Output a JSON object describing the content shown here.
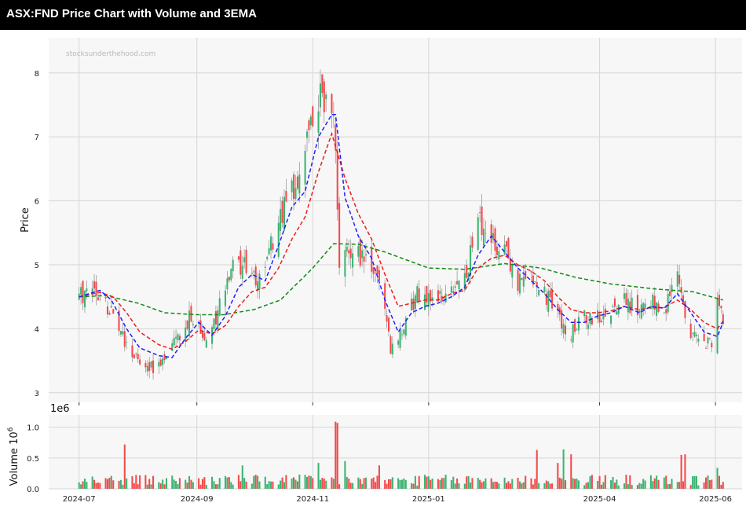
{
  "title": "ASX:FND Price Chart with Volume and 3EMA",
  "watermark": "stocksunderthehood.com",
  "colors": {
    "up": "#3cb371",
    "down": "#f24a4a",
    "ema_fast": "#1f1fff",
    "ema_mid": "#ee1c1c",
    "ema_slow": "#138a13",
    "panel_bg": "#f7f7f7",
    "grid": "#d6d6d6"
  },
  "chart_data": [
    {
      "type": "candlestick",
      "ylabel": "Price",
      "ylim": [
        2.85,
        8.55
      ],
      "yticks": [
        3,
        4,
        5,
        6,
        7,
        8
      ],
      "xlim": [
        "2024-06-15",
        "2025-06-15"
      ],
      "grid": true,
      "anchors": [
        [
          "2024-07-01",
          4.52
        ],
        [
          "2024-07-10",
          4.62
        ],
        [
          "2024-07-18",
          4.25
        ],
        [
          "2024-07-25",
          3.85
        ],
        [
          "2024-08-01",
          3.45
        ],
        [
          "2024-08-08",
          3.4
        ],
        [
          "2024-08-15",
          3.45
        ],
        [
          "2024-08-22",
          3.85
        ],
        [
          "2024-08-29",
          4.25
        ],
        [
          "2024-09-05",
          3.85
        ],
        [
          "2024-09-12",
          4.25
        ],
        [
          "2024-09-20",
          4.95
        ],
        [
          "2024-09-27",
          5.0
        ],
        [
          "2024-10-04",
          4.75
        ],
        [
          "2024-10-11",
          5.35
        ],
        [
          "2024-10-18",
          6.05
        ],
        [
          "2024-10-25",
          6.35
        ],
        [
          "2024-10-31",
          7.1
        ],
        [
          "2024-11-05",
          7.75
        ],
        [
          "2024-11-12",
          7.35
        ],
        [
          "2024-11-15",
          5.1
        ],
        [
          "2024-11-22",
          5.2
        ],
        [
          "2024-11-29",
          5.05
        ],
        [
          "2024-12-06",
          4.85
        ],
        [
          "2024-12-12",
          3.65
        ],
        [
          "2024-12-18",
          4.05
        ],
        [
          "2024-12-26",
          4.55
        ],
        [
          "2025-01-06",
          4.45
        ],
        [
          "2025-01-13",
          4.55
        ],
        [
          "2025-01-20",
          4.75
        ],
        [
          "2025-01-27",
          5.75
        ],
        [
          "2025-02-03",
          5.4
        ],
        [
          "2025-02-10",
          5.2
        ],
        [
          "2025-02-17",
          4.75
        ],
        [
          "2025-02-24",
          4.85
        ],
        [
          "2025-03-03",
          4.55
        ],
        [
          "2025-03-10",
          4.15
        ],
        [
          "2025-03-17",
          3.95
        ],
        [
          "2025-03-24",
          4.15
        ],
        [
          "2025-03-31",
          4.2
        ],
        [
          "2025-04-07",
          4.3
        ],
        [
          "2025-04-14",
          4.45
        ],
        [
          "2025-04-22",
          4.25
        ],
        [
          "2025-04-30",
          4.4
        ],
        [
          "2025-05-06",
          4.35
        ],
        [
          "2025-05-12",
          4.9
        ],
        [
          "2025-05-16",
          4.05
        ],
        [
          "2025-05-23",
          3.85
        ],
        [
          "2025-05-30",
          3.72
        ],
        [
          "2025-06-02",
          4.35
        ],
        [
          "2025-06-05",
          4.22
        ]
      ],
      "ema_fast": [
        [
          "2024-07-01",
          4.5
        ],
        [
          "2024-07-12",
          4.6
        ],
        [
          "2024-07-18",
          4.45
        ],
        [
          "2024-07-26",
          4.0
        ],
        [
          "2024-08-02",
          3.7
        ],
        [
          "2024-08-12",
          3.58
        ],
        [
          "2024-08-19",
          3.55
        ],
        [
          "2024-08-26",
          3.85
        ],
        [
          "2024-09-02",
          4.1
        ],
        [
          "2024-09-09",
          3.9
        ],
        [
          "2024-09-16",
          4.2
        ],
        [
          "2024-09-23",
          4.65
        ],
        [
          "2024-09-30",
          4.85
        ],
        [
          "2024-10-07",
          4.75
        ],
        [
          "2024-10-14",
          5.3
        ],
        [
          "2024-10-21",
          5.9
        ],
        [
          "2024-10-28",
          6.15
        ],
        [
          "2024-11-04",
          7.0
        ],
        [
          "2024-11-11",
          7.35
        ],
        [
          "2024-11-13",
          7.35
        ],
        [
          "2024-11-18",
          6.05
        ],
        [
          "2024-11-25",
          5.45
        ],
        [
          "2024-12-02",
          5.1
        ],
        [
          "2024-12-09",
          4.45
        ],
        [
          "2024-12-16",
          3.95
        ],
        [
          "2024-12-23",
          4.25
        ],
        [
          "2024-12-30",
          4.35
        ],
        [
          "2025-01-06",
          4.4
        ],
        [
          "2025-01-13",
          4.5
        ],
        [
          "2025-01-20",
          4.65
        ],
        [
          "2025-01-27",
          5.15
        ],
        [
          "2025-02-03",
          5.45
        ],
        [
          "2025-02-10",
          5.2
        ],
        [
          "2025-02-17",
          4.95
        ],
        [
          "2025-02-24",
          4.75
        ],
        [
          "2025-03-03",
          4.55
        ],
        [
          "2025-03-10",
          4.3
        ],
        [
          "2025-03-17",
          4.1
        ],
        [
          "2025-03-24",
          4.1
        ],
        [
          "2025-03-31",
          4.2
        ],
        [
          "2025-04-07",
          4.25
        ],
        [
          "2025-04-14",
          4.35
        ],
        [
          "2025-04-22",
          4.25
        ],
        [
          "2025-04-28",
          4.35
        ],
        [
          "2025-05-05",
          4.32
        ],
        [
          "2025-05-12",
          4.55
        ],
        [
          "2025-05-19",
          4.25
        ],
        [
          "2025-05-26",
          3.95
        ],
        [
          "2025-06-02",
          3.88
        ],
        [
          "2025-06-05",
          4.1
        ]
      ],
      "ema_mid": [
        [
          "2024-07-01",
          4.5
        ],
        [
          "2024-07-12",
          4.57
        ],
        [
          "2024-07-19",
          4.5
        ],
        [
          "2024-07-26",
          4.25
        ],
        [
          "2024-08-02",
          3.95
        ],
        [
          "2024-08-12",
          3.75
        ],
        [
          "2024-08-19",
          3.68
        ],
        [
          "2024-08-26",
          3.8
        ],
        [
          "2024-09-02",
          3.98
        ],
        [
          "2024-09-09",
          3.92
        ],
        [
          "2024-09-16",
          4.05
        ],
        [
          "2024-09-23",
          4.35
        ],
        [
          "2024-09-30",
          4.58
        ],
        [
          "2024-10-07",
          4.65
        ],
        [
          "2024-10-14",
          4.95
        ],
        [
          "2024-10-21",
          5.4
        ],
        [
          "2024-10-28",
          5.75
        ],
        [
          "2024-11-04",
          6.45
        ],
        [
          "2024-11-11",
          7.05
        ],
        [
          "2024-11-18",
          6.35
        ],
        [
          "2024-11-25",
          5.8
        ],
        [
          "2024-12-02",
          5.4
        ],
        [
          "2024-12-09",
          4.85
        ],
        [
          "2024-12-16",
          4.35
        ],
        [
          "2024-12-23",
          4.4
        ],
        [
          "2024-12-30",
          4.45
        ],
        [
          "2025-01-06",
          4.45
        ],
        [
          "2025-01-13",
          4.55
        ],
        [
          "2025-01-20",
          4.6
        ],
        [
          "2025-01-27",
          4.95
        ],
        [
          "2025-02-03",
          5.1
        ],
        [
          "2025-02-10",
          5.15
        ],
        [
          "2025-02-17",
          5.0
        ],
        [
          "2025-02-24",
          4.9
        ],
        [
          "2025-03-03",
          4.75
        ],
        [
          "2025-03-10",
          4.5
        ],
        [
          "2025-03-17",
          4.3
        ],
        [
          "2025-03-24",
          4.25
        ],
        [
          "2025-03-31",
          4.25
        ],
        [
          "2025-04-07",
          4.28
        ],
        [
          "2025-04-14",
          4.35
        ],
        [
          "2025-04-22",
          4.3
        ],
        [
          "2025-04-28",
          4.33
        ],
        [
          "2025-05-05",
          4.33
        ],
        [
          "2025-05-12",
          4.45
        ],
        [
          "2025-05-19",
          4.3
        ],
        [
          "2025-05-26",
          4.1
        ],
        [
          "2025-06-02",
          4.0
        ],
        [
          "2025-06-05",
          4.12
        ]
      ],
      "ema_slow": [
        [
          "2024-07-01",
          4.5
        ],
        [
          "2024-07-15",
          4.52
        ],
        [
          "2024-08-01",
          4.4
        ],
        [
          "2024-08-15",
          4.25
        ],
        [
          "2024-09-01",
          4.22
        ],
        [
          "2024-09-15",
          4.22
        ],
        [
          "2024-10-01",
          4.3
        ],
        [
          "2024-10-15",
          4.45
        ],
        [
          "2024-11-01",
          4.95
        ],
        [
          "2024-11-12",
          5.33
        ],
        [
          "2024-11-25",
          5.32
        ],
        [
          "2024-12-09",
          5.2
        ],
        [
          "2025-01-01",
          4.95
        ],
        [
          "2025-01-20",
          4.93
        ],
        [
          "2025-02-10",
          5.02
        ],
        [
          "2025-03-01",
          4.95
        ],
        [
          "2025-03-20",
          4.8
        ],
        [
          "2025-04-07",
          4.7
        ],
        [
          "2025-05-01",
          4.62
        ],
        [
          "2025-05-20",
          4.58
        ],
        [
          "2025-06-05",
          4.45
        ]
      ]
    },
    {
      "type": "bar",
      "ylabel": "Volume",
      "ylabel_exp": "6",
      "multiplier_label": "1e6",
      "ylim": [
        0,
        1.2
      ],
      "yticks": [
        "0.0",
        "0.5",
        "1.0"
      ],
      "spikes": [
        [
          "2024-07-25",
          0.72
        ],
        [
          "2024-07-28",
          0.55
        ],
        [
          "2024-09-25",
          0.38
        ],
        [
          "2024-11-04",
          0.42
        ],
        [
          "2024-11-13",
          1.09
        ],
        [
          "2024-11-14",
          1.07
        ],
        [
          "2024-11-18",
          0.45
        ],
        [
          "2024-12-06",
          0.38
        ],
        [
          "2025-02-27",
          0.63
        ],
        [
          "2025-03-10",
          0.42
        ],
        [
          "2025-03-13",
          0.64
        ],
        [
          "2025-03-17",
          0.56
        ],
        [
          "2025-05-14",
          0.55
        ],
        [
          "2025-05-16",
          0.56
        ],
        [
          "2025-06-02",
          0.34
        ]
      ]
    }
  ],
  "x_ticks": [
    {
      "date": "2024-07-01",
      "label": "2024-07"
    },
    {
      "date": "2024-09-01",
      "label": "2024-09"
    },
    {
      "date": "2024-11-01",
      "label": "2024-11"
    },
    {
      "date": "2025-01-01",
      "label": "2025-01"
    },
    {
      "date": "2025-04-01",
      "label": "2025-04"
    },
    {
      "date": "2025-06-01",
      "label": "2025-06"
    }
  ]
}
